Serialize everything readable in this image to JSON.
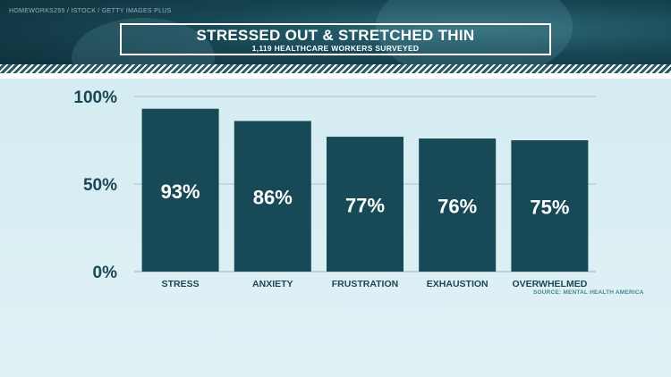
{
  "header": {
    "credit": "HOMEWORKS255 / ISTOCK / GETTY IMAGES PLUS",
    "title": "STRESSED OUT & STRETCHED THIN",
    "subtitle": "1,119 HEALTHCARE WORKERS SURVEYED"
  },
  "source": "SOURCE: MENTAL HEALTH AMERICA",
  "colors": {
    "bar": "#174a56",
    "axis_text": "#1b4753",
    "bar_label": "#ffffff",
    "banner": "#0d2e38"
  },
  "chart_data": {
    "type": "bar",
    "title": "STRESSED OUT & STRETCHED THIN",
    "subtitle": "1,119 HEALTHCARE WORKERS SURVEYED",
    "categories": [
      "STRESS",
      "ANXIETY",
      "FRUSTRATION",
      "EXHAUSTION",
      "OVERWHELMED"
    ],
    "values": [
      93,
      86,
      77,
      76,
      75
    ],
    "value_labels": [
      "93%",
      "86%",
      "77%",
      "76%",
      "75%"
    ],
    "ylim": [
      0,
      100
    ],
    "yticks": [
      0,
      50,
      100
    ],
    "ytick_labels": [
      "0%",
      "50%",
      "100%"
    ],
    "grid": true,
    "legend": "none"
  }
}
